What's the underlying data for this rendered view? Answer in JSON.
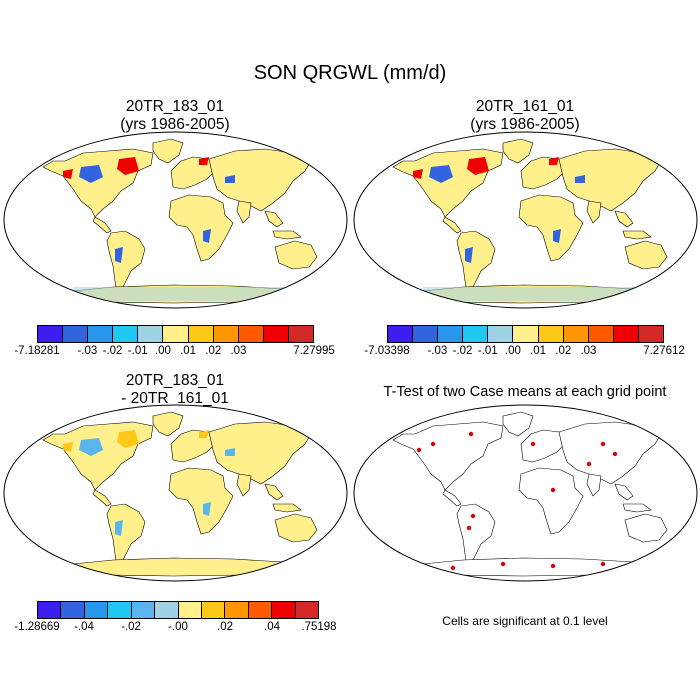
{
  "title": "SON QRGWL (mm/d)",
  "panels": [
    {
      "id": "p1",
      "title_line1": "20TR_183_01",
      "title_line2": "(yrs 1986-2005)"
    },
    {
      "id": "p2",
      "title_line1": "20TR_161_01",
      "title_line2": "(yrs 1986-2005)"
    },
    {
      "id": "p3",
      "title_line1": "20TR_183_01",
      "title_line2": "- 20TR_161_01"
    },
    {
      "id": "p4",
      "title_line1": "T-Test of two Case means at each grid point",
      "title_line2": ""
    }
  ],
  "colorbars": {
    "cb1": {
      "colors": [
        "#3c1ef0",
        "#3264e0",
        "#2896eb",
        "#1ec8f0",
        "#a0d2e6",
        "#fff08c",
        "#ffc819",
        "#ff9600",
        "#ff5a00",
        "#f00000",
        "#d22828"
      ],
      "labels": [
        "-7.18281",
        "-.03",
        "-.02",
        "-.01",
        ".00",
        ".01",
        ".02",
        ".03",
        "7.27995"
      ]
    },
    "cb2": {
      "colors": [
        "#3c1ef0",
        "#3264e0",
        "#2896eb",
        "#1ec8f0",
        "#a0d2e6",
        "#fff08c",
        "#ffc819",
        "#ff9600",
        "#ff5a00",
        "#f00000",
        "#d22828"
      ],
      "labels": [
        "-7.03398",
        "-.03",
        "-.02",
        "-.01",
        ".00",
        ".01",
        ".02",
        ".03",
        "7.27612"
      ]
    },
    "cb3": {
      "colors": [
        "#3c1ef0",
        "#3264e0",
        "#2896eb",
        "#1ec8f0",
        "#5ab4f0",
        "#a0d2e6",
        "#fff08c",
        "#ffc819",
        "#ff9600",
        "#ff5a00",
        "#f00000",
        "#d22828"
      ],
      "labels": [
        "-1.28669",
        "-.04",
        "-.02",
        "-.00",
        ".02",
        ".04",
        ".75198"
      ]
    }
  },
  "note": "Cells are significant at 0.1 level",
  "land_color": "#fff08c",
  "significant_color": "#e00000"
}
